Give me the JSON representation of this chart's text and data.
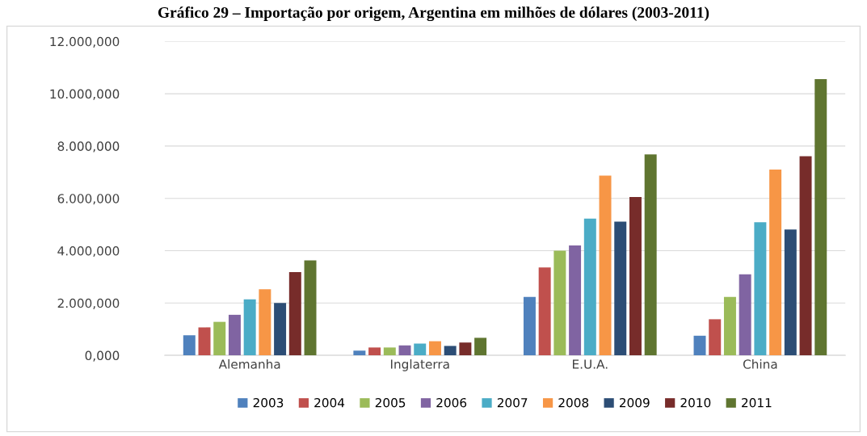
{
  "chart_data": {
    "type": "bar",
    "title": "Gráfico 29 – Importação por origem, Argentina em milhões de dólares (2003-2011)",
    "categories": [
      "Alemanha",
      "Inglaterra",
      "E.U.A.",
      "China"
    ],
    "series": [
      {
        "name": "2003",
        "color": "#4f81bd",
        "values": [
          770,
          180,
          2230,
          750
        ]
      },
      {
        "name": "2004",
        "color": "#c0504d",
        "values": [
          1070,
          300,
          3360,
          1380
        ]
      },
      {
        "name": "2005",
        "color": "#9bbb59",
        "values": [
          1280,
          300,
          4000,
          2230
        ]
      },
      {
        "name": "2006",
        "color": "#8064a2",
        "values": [
          1550,
          380,
          4200,
          3100
        ]
      },
      {
        "name": "2007",
        "color": "#4bacc6",
        "values": [
          2140,
          450,
          5230,
          5090
        ]
      },
      {
        "name": "2008",
        "color": "#f79646",
        "values": [
          2530,
          540,
          6870,
          7100
        ]
      },
      {
        "name": "2009",
        "color": "#2c4d75",
        "values": [
          2000,
          360,
          5110,
          4810
        ]
      },
      {
        "name": "2010",
        "color": "#772c2a",
        "values": [
          3180,
          490,
          6050,
          7610
        ]
      },
      {
        "name": "2011",
        "color": "#5f7530",
        "values": [
          3630,
          670,
          7680,
          10560
        ]
      }
    ],
    "ylim": [
      0,
      12000
    ],
    "yticks": [
      {
        "value": 0,
        "label": "0,000"
      },
      {
        "value": 2000,
        "label": "2.000,000"
      },
      {
        "value": 4000,
        "label": "4.000,000"
      },
      {
        "value": 6000,
        "label": "6.000,000"
      },
      {
        "value": 8000,
        "label": "8.000,000"
      },
      {
        "value": 10000,
        "label": "10.000,000"
      },
      {
        "value": 12000,
        "label": "12.000,000"
      }
    ],
    "grid": "y",
    "legend": "bottom"
  }
}
